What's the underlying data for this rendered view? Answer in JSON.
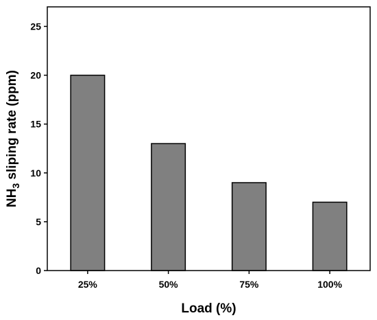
{
  "chart_data": {
    "type": "bar",
    "categories": [
      "25%",
      "50%",
      "75%",
      "100%"
    ],
    "values": [
      20,
      13,
      9,
      7
    ],
    "xlabel": "Load (%)",
    "ylabel": {
      "prefix": "NH",
      "sub": "3",
      "suffix": " sliping rate (ppm)"
    },
    "ylim": [
      0,
      27
    ],
    "yticks": [
      0,
      5,
      10,
      15,
      20,
      25
    ],
    "grid": false,
    "legend": "none",
    "colors": {
      "bar_fill": "#808080",
      "bar_stroke": "#000000",
      "axis": "#000000"
    }
  }
}
